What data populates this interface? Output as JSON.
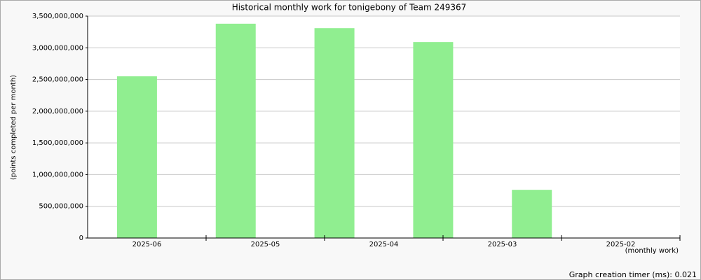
{
  "chart_data": {
    "type": "bar",
    "title": "Historical monthly work for tonigebony of Team 249367",
    "y_label": "(points completed per month)",
    "x_label": "(monthly work)",
    "categories": [
      "2025-06",
      "2025-05",
      "2025-04",
      "2025-03",
      "2025-02"
    ],
    "values": [
      2550000000,
      3380000000,
      3310000000,
      3090000000,
      760000000
    ],
    "color": "#90ee90",
    "ylim": [
      0,
      3500000000
    ],
    "yticks": [
      0,
      {
        "value": 500000000,
        "label": "500,000,000"
      },
      {
        "value": 1000000000,
        "label": "1,000,000,000"
      },
      {
        "value": 1500000000,
        "label": "1,500,000,000"
      },
      {
        "value": 2000000000,
        "label": "2,000,000,000"
      },
      {
        "value": 2500000000,
        "label": "2,500,000,000"
      },
      {
        "value": 3000000000,
        "label": "3,000,000,000"
      },
      {
        "value": 3500000000,
        "label": "3,500,000,000"
      }
    ],
    "grid": true
  },
  "footer": "Graph creation timer (ms): 0.021"
}
